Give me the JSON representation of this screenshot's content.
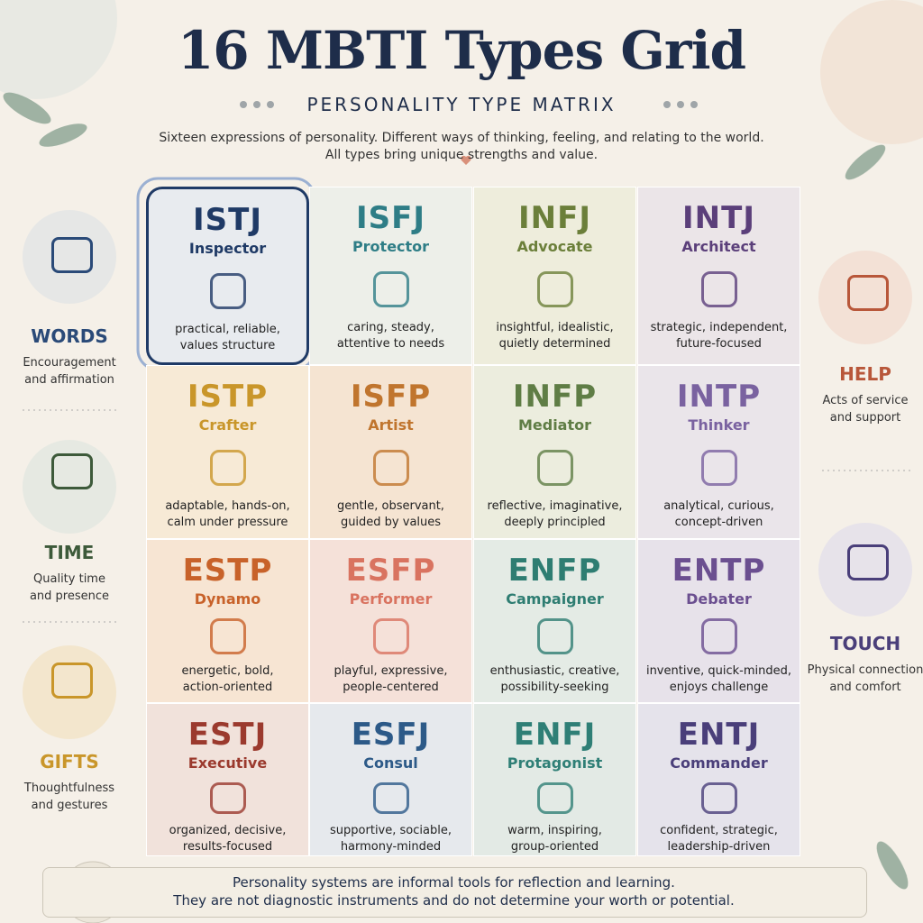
{
  "header": {
    "title": "16 MBTI Types Grid",
    "subtitle": "PERSONALITY TYPE MATRIX",
    "description": [
      "Sixteen expressions of personality. Different ways of thinking, feeling, and relating to the world.",
      "All types bring unique strengths and value."
    ]
  },
  "grid": {
    "cells": [
      {
        "code": "ISTJ",
        "name": "Inspector",
        "traits": [
          "practical, reliable,",
          "values structure"
        ],
        "color": "#1f3a66",
        "background": "#e8ebef"
      },
      {
        "code": "ISFJ",
        "name": "Protector",
        "traits": [
          "caring, steady,",
          "attentive to needs"
        ],
        "color": "#2e7d86",
        "background": "#edefe9"
      },
      {
        "code": "INFJ",
        "name": "Advocate",
        "traits": [
          "insightful, idealistic,",
          "quietly determined"
        ],
        "color": "#6b7f3a",
        "background": "#eeeddc"
      },
      {
        "code": "INTJ",
        "name": "Architect",
        "traits": [
          "strategic, independent,",
          "future-focused"
        ],
        "color": "#5b3f7a",
        "background": "#ebe5e8"
      },
      {
        "code": "ISTP",
        "name": "Crafter",
        "traits": [
          "adaptable, hands-on,",
          "calm under pressure"
        ],
        "color": "#c9962a",
        "background": "#f7ead6"
      },
      {
        "code": "ISFP",
        "name": "Artist",
        "traits": [
          "gentle, observant,",
          "guided by values"
        ],
        "color": "#c0752e",
        "background": "#f5e4d2"
      },
      {
        "code": "INFP",
        "name": "Mediator",
        "traits": [
          "reflective, imaginative,",
          "deeply principled"
        ],
        "color": "#5f7d45",
        "background": "#ecedde"
      },
      {
        "code": "INTP",
        "name": "Thinker",
        "traits": [
          "analytical, curious,",
          "concept-driven"
        ],
        "color": "#7a62a0",
        "background": "#eae5ea"
      },
      {
        "code": "ESTP",
        "name": "Dynamo",
        "traits": [
          "energetic, bold,",
          "action-oriented"
        ],
        "color": "#c8622a",
        "background": "#f7e5d3"
      },
      {
        "code": "ESFP",
        "name": "Performer",
        "traits": [
          "playful, expressive,",
          "people-centered"
        ],
        "color": "#d97360",
        "background": "#f5e1d9"
      },
      {
        "code": "ENFP",
        "name": "Campaigner",
        "traits": [
          "enthusiastic, creative,",
          "possibility-seeking"
        ],
        "color": "#2e7d72",
        "background": "#e4ebe5"
      },
      {
        "code": "ENTP",
        "name": "Debater",
        "traits": [
          "inventive, quick-minded,",
          "enjoys challenge"
        ],
        "color": "#6b4f90",
        "background": "#e7e2ea"
      },
      {
        "code": "ESTJ",
        "name": "Executive",
        "traits": [
          "organized, decisive,",
          "results-focused"
        ],
        "color": "#9b3a2e",
        "background": "#f1e2db"
      },
      {
        "code": "ESFJ",
        "name": "Consul",
        "traits": [
          "supportive, sociable,",
          "harmony-minded"
        ],
        "color": "#2d5a88",
        "background": "#e6e9ed"
      },
      {
        "code": "ENFJ",
        "name": "Protagonist",
        "traits": [
          "warm, inspiring,",
          "group-oriented"
        ],
        "color": "#2f7f76",
        "background": "#e3eae5"
      },
      {
        "code": "ENTJ",
        "name": "Commander",
        "traits": [
          "confident, strategic,",
          "leadership-driven"
        ],
        "color": "#4a3f7a",
        "background": "#e5e3eb"
      }
    ]
  },
  "left_panel": [
    {
      "label": "WORDS",
      "description": [
        "Encouragement",
        "and affirmation"
      ],
      "color": "#2a4a78"
    },
    {
      "label": "TIME",
      "description": [
        "Quality time",
        "and presence"
      ],
      "color": "#3d5a3a"
    },
    {
      "label": "GIFTS",
      "description": [
        "Thoughtfulness",
        "and gestures"
      ],
      "color": "#c9962a"
    }
  ],
  "right_panel": [
    {
      "label": "HELP",
      "description": [
        "Acts of service",
        "and support"
      ],
      "color": "#b8573a"
    },
    {
      "label": "TOUCH",
      "description": [
        "Physical connection",
        "and comfort"
      ],
      "color": "#4a3f7a"
    }
  ],
  "footer": [
    "Personality systems are informal tools for reflection and learning.",
    "They are not diagnostic instruments and do not determine your worth or potential."
  ]
}
